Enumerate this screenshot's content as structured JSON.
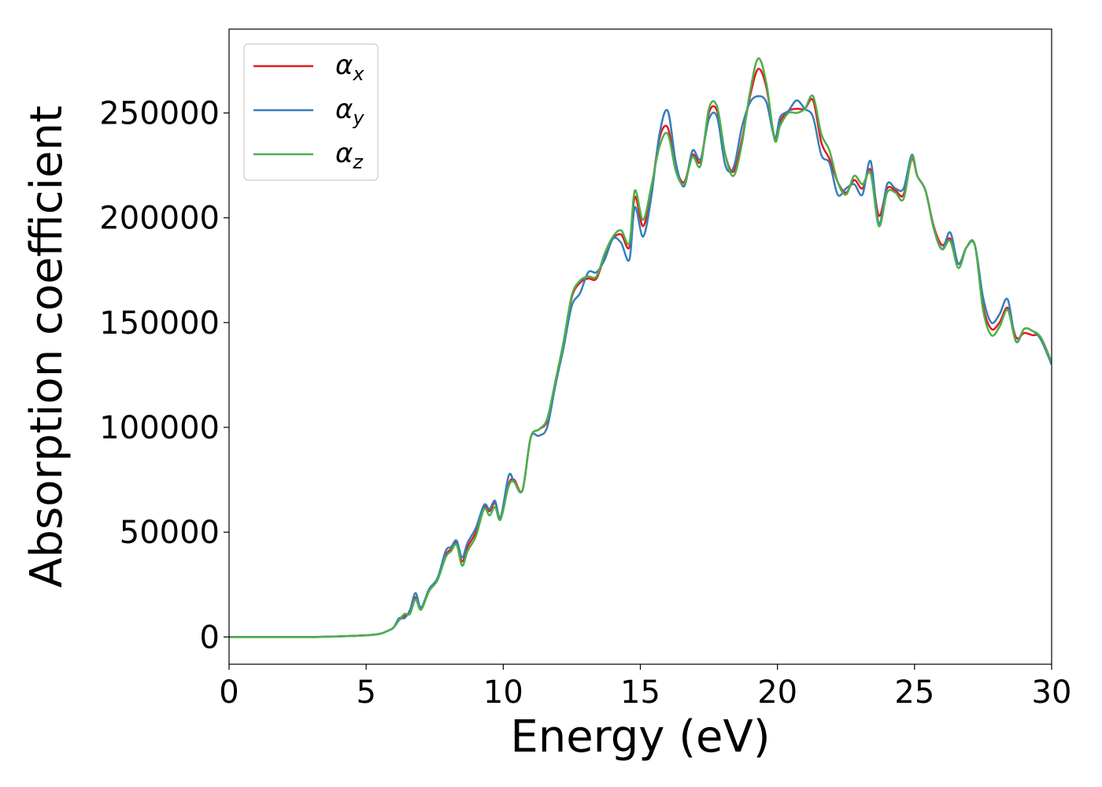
{
  "chart_data": {
    "type": "line",
    "title": "",
    "xlabel": "Energy (eV)",
    "ylabel": "Absorption coefficient",
    "xlim": [
      0,
      30
    ],
    "ylim": [
      -13000,
      290000
    ],
    "xticks": [
      0,
      5,
      10,
      15,
      20,
      25,
      30
    ],
    "yticks": [
      0,
      50000,
      100000,
      150000,
      200000,
      250000
    ],
    "grid": false,
    "legend_position": "top-left",
    "x": [
      0,
      1,
      2,
      3,
      4,
      5,
      5.5,
      5.8,
      6.0,
      6.2,
      6.4,
      6.6,
      6.8,
      7.0,
      7.3,
      7.6,
      7.9,
      8.1,
      8.3,
      8.5,
      8.7,
      9.0,
      9.3,
      9.5,
      9.7,
      9.9,
      10.2,
      10.4,
      10.7,
      11.0,
      11.3,
      11.6,
      11.9,
      12.2,
      12.5,
      12.8,
      13.1,
      13.4,
      13.7,
      14.0,
      14.3,
      14.6,
      14.8,
      15.1,
      15.4,
      15.7,
      16.0,
      16.3,
      16.6,
      16.9,
      17.2,
      17.5,
      17.8,
      18.1,
      18.4,
      18.7,
      19.0,
      19.3,
      19.6,
      19.9,
      20.1,
      20.4,
      20.7,
      21.0,
      21.3,
      21.6,
      21.9,
      22.2,
      22.5,
      22.8,
      23.1,
      23.4,
      23.7,
      24.0,
      24.3,
      24.6,
      24.9,
      25.1,
      25.4,
      25.7,
      26.0,
      26.3,
      26.6,
      26.9,
      27.2,
      27.5,
      27.8,
      28.1,
      28.4,
      28.7,
      29.0,
      29.3,
      29.6,
      30.0
    ],
    "series": [
      {
        "name": "α_x",
        "color": "#e41a1c",
        "values": [
          0,
          0,
          0,
          0,
          300,
          800,
          1500,
          3000,
          4500,
          8000,
          10000,
          12000,
          19000,
          14000,
          22000,
          28000,
          39000,
          42000,
          45000,
          36000,
          43000,
          50000,
          62000,
          60000,
          64000,
          57000,
          73000,
          75000,
          70000,
          95000,
          99000,
          103000,
          120000,
          140000,
          162000,
          169000,
          171000,
          171000,
          182000,
          190000,
          192000,
          186000,
          210000,
          196000,
          213000,
          238000,
          243000,
          224000,
          217000,
          230000,
          227000,
          250000,
          251000,
          230000,
          222000,
          237000,
          258000,
          271000,
          262000,
          238000,
          246000,
          251000,
          252000,
          252000,
          256000,
          236000,
          228000,
          217000,
          212000,
          218000,
          214000,
          223000,
          201000,
          214000,
          213000,
          211000,
          228000,
          220000,
          213000,
          196000,
          187000,
          190000,
          178000,
          186000,
          187000,
          158000,
          147000,
          150000,
          157000,
          143000,
          145000,
          144000,
          143000,
          131000
        ]
      },
      {
        "name": "α_y",
        "color": "#377eb8",
        "values": [
          0,
          0,
          0,
          0,
          300,
          800,
          1500,
          3000,
          4500,
          9000,
          9000,
          13000,
          21000,
          14000,
          23000,
          28000,
          41000,
          43000,
          46000,
          38000,
          45000,
          52000,
          63000,
          61000,
          65000,
          57000,
          77000,
          74000,
          70000,
          95000,
          96000,
          100000,
          120000,
          138000,
          158000,
          164000,
          174000,
          174000,
          180000,
          190000,
          188000,
          180000,
          205000,
          191000,
          210000,
          240000,
          251000,
          226000,
          215000,
          232000,
          228000,
          247000,
          248000,
          225000,
          224000,
          243000,
          255000,
          258000,
          255000,
          238000,
          248000,
          251000,
          256000,
          252000,
          248000,
          230000,
          226000,
          211000,
          214000,
          216000,
          211000,
          227000,
          197000,
          216000,
          214000,
          214000,
          230000,
          220000,
          213000,
          195000,
          185000,
          193000,
          178000,
          186000,
          187000,
          162000,
          150000,
          154000,
          161000,
          141000,
          147000,
          146000,
          142000,
          130000
        ]
      },
      {
        "name": "α_z",
        "color": "#4daf4a",
        "values": [
          0,
          0,
          0,
          0,
          300,
          800,
          1500,
          3000,
          4500,
          8000,
          11000,
          11000,
          18000,
          13000,
          22000,
          27000,
          38000,
          41000,
          44000,
          34000,
          41000,
          48000,
          61000,
          58000,
          62000,
          56000,
          72000,
          74000,
          70000,
          95000,
          99000,
          104000,
          122000,
          141000,
          163000,
          170000,
          172000,
          172000,
          183000,
          191000,
          194000,
          188000,
          213000,
          199000,
          215000,
          234000,
          240000,
          222000,
          216000,
          229000,
          225000,
          252000,
          253000,
          230000,
          220000,
          235000,
          260000,
          276000,
          264000,
          237000,
          244000,
          250000,
          250000,
          252000,
          258000,
          240000,
          232000,
          217000,
          211000,
          220000,
          216000,
          221000,
          196000,
          212000,
          212000,
          209000,
          229000,
          220000,
          213000,
          195000,
          185000,
          189000,
          176000,
          186000,
          187000,
          156000,
          144000,
          148000,
          156000,
          141000,
          147000,
          146000,
          143000,
          131000
        ]
      }
    ]
  }
}
